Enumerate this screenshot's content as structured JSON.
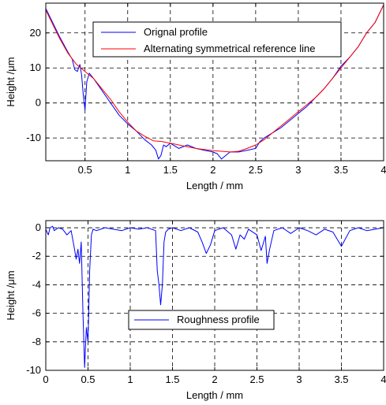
{
  "colors": {
    "original": "#0000ff",
    "reference": "#ff0000",
    "roughness": "#0000ff",
    "axis": "#000000",
    "grid": "#000000"
  },
  "chart_data": [
    {
      "type": "line",
      "xlabel": "Length / mm",
      "ylabel": "Height /μm",
      "xlim": [
        0.04,
        4.0
      ],
      "ylim": [
        -16.5,
        28.5
      ],
      "xticks": [
        0.5,
        1,
        1.5,
        2,
        2.5,
        3,
        3.5,
        4
      ],
      "xtick_labels": [
        "0.5",
        "1",
        "1.5",
        "2",
        "2.5",
        "3",
        "3.5",
        "4"
      ],
      "yticks": [
        -10,
        0,
        10,
        20
      ],
      "ytick_labels": [
        "-10",
        "0",
        "10",
        "20"
      ],
      "grid": true,
      "legend_position": "top-right",
      "series": [
        {
          "name": "Orignal profile",
          "color": "#0000ff",
          "x": [
            0.04,
            0.1,
            0.2,
            0.3,
            0.35,
            0.38,
            0.41,
            0.44,
            0.46,
            0.48,
            0.5,
            0.52,
            0.55,
            0.6,
            0.7,
            0.8,
            0.9,
            1.0,
            1.1,
            1.2,
            1.28,
            1.33,
            1.36,
            1.39,
            1.42,
            1.45,
            1.5,
            1.6,
            1.7,
            1.8,
            1.9,
            2.0,
            2.05,
            2.1,
            2.15,
            2.2,
            2.3,
            2.4,
            2.5,
            2.55,
            2.6,
            2.7,
            2.8,
            2.9,
            3.0,
            3.1,
            3.2,
            3.3,
            3.4,
            3.5,
            3.6,
            3.7,
            3.8,
            3.9,
            4.0
          ],
          "y": [
            27,
            24,
            19,
            14.5,
            12.5,
            9.5,
            9,
            11,
            8,
            2,
            -2,
            6,
            8.5,
            7,
            3.5,
            0,
            -3.5,
            -6,
            -8,
            -10.5,
            -12,
            -13.5,
            -16,
            -15,
            -12,
            -12.5,
            -11.5,
            -13,
            -12,
            -13,
            -13.5,
            -14,
            -14.5,
            -16,
            -15,
            -14,
            -14,
            -13.5,
            -13,
            -11,
            -10,
            -8.5,
            -7,
            -5,
            -3,
            -1,
            1.5,
            4,
            7,
            10.5,
            13,
            16,
            20,
            23,
            28
          ]
        },
        {
          "name": "Alternating symmetrical reference line",
          "color": "#ff0000",
          "x": [
            0.04,
            0.1,
            0.2,
            0.3,
            0.4,
            0.5,
            0.6,
            0.7,
            0.8,
            0.9,
            1.0,
            1.1,
            1.2,
            1.3,
            1.4,
            1.5,
            1.6,
            1.7,
            1.8,
            1.9,
            2.0,
            2.1,
            2.2,
            2.3,
            2.4,
            2.5,
            2.6,
            2.7,
            2.8,
            2.9,
            3.0,
            3.1,
            3.2,
            3.3,
            3.4,
            3.5,
            3.6,
            3.7,
            3.8,
            3.9,
            4.0
          ],
          "y": [
            26.5,
            23.5,
            18.5,
            14.2,
            11,
            9,
            7,
            4,
            1,
            -2.5,
            -5.5,
            -8,
            -9.5,
            -10.8,
            -11,
            -11.5,
            -12,
            -12.5,
            -13,
            -13.3,
            -13.6,
            -13.8,
            -14,
            -13.8,
            -13,
            -12,
            -10.5,
            -8.5,
            -6.5,
            -4.5,
            -2.5,
            -0.5,
            1.5,
            4,
            7,
            10,
            13,
            16,
            20,
            23,
            28
          ]
        }
      ],
      "legend": [
        "Orignal profile",
        "Alternating symmetrical reference line"
      ]
    },
    {
      "type": "line",
      "xlabel": "Length / mm",
      "ylabel": "Height /μm",
      "xlim": [
        0,
        4
      ],
      "ylim": [
        -10,
        0.5
      ],
      "xticks": [
        0,
        0.5,
        1,
        1.5,
        2,
        2.5,
        3,
        3.5,
        4
      ],
      "xtick_labels": [
        "0",
        "0.5",
        "1",
        "1.5",
        "2",
        "2.5",
        "3",
        "3.5",
        "4"
      ],
      "yticks": [
        -10,
        -8,
        -6,
        -4,
        -2,
        0
      ],
      "ytick_labels": [
        "-10",
        "-8",
        "-6",
        "-4",
        "-2",
        "0"
      ],
      "grid": true,
      "legend_position": "center",
      "series": [
        {
          "name": "Roughness profile",
          "color": "#0000ff",
          "x": [
            0,
            0.03,
            0.05,
            0.08,
            0.1,
            0.15,
            0.2,
            0.25,
            0.3,
            0.34,
            0.36,
            0.38,
            0.4,
            0.42,
            0.44,
            0.46,
            0.48,
            0.5,
            0.52,
            0.54,
            0.56,
            0.6,
            0.7,
            0.8,
            0.9,
            1.0,
            1.1,
            1.2,
            1.3,
            1.32,
            1.34,
            1.36,
            1.38,
            1.4,
            1.42,
            1.45,
            1.5,
            1.6,
            1.7,
            1.8,
            1.85,
            1.9,
            1.95,
            2.0,
            2.1,
            2.2,
            2.25,
            2.3,
            2.35,
            2.4,
            2.5,
            2.55,
            2.6,
            2.62,
            2.65,
            2.7,
            2.8,
            2.9,
            3.0,
            3.1,
            3.2,
            3.3,
            3.4,
            3.5,
            3.6,
            3.7,
            3.8,
            3.9,
            4.0
          ],
          "y": [
            -0.1,
            -0.5,
            0,
            0.1,
            -0.2,
            0,
            -0.1,
            -0.5,
            -0.2,
            -1.5,
            -2.2,
            -1.5,
            -2.5,
            -1,
            -6,
            -9.8,
            -7,
            -8,
            -3,
            -0.5,
            -0.1,
            -0.2,
            0,
            -0.1,
            -0.2,
            0,
            -0.1,
            0,
            -0.2,
            -3,
            -4,
            -5.4,
            -4,
            -1,
            -0.3,
            -0.1,
            0,
            -0.2,
            0,
            -0.3,
            -1,
            -1.8,
            -1.2,
            -0.2,
            0,
            -0.5,
            -1.5,
            -0.5,
            -0.8,
            -0.1,
            -0.5,
            -1.6,
            -0.6,
            -2.5,
            -1.5,
            -0.2,
            0,
            -0.4,
            0,
            -0.2,
            -0.5,
            -0.1,
            -0.3,
            -1.3,
            -0.2,
            0,
            -0.2,
            -0.1,
            0
          ]
        }
      ],
      "legend": [
        "Roughness profile"
      ]
    }
  ]
}
